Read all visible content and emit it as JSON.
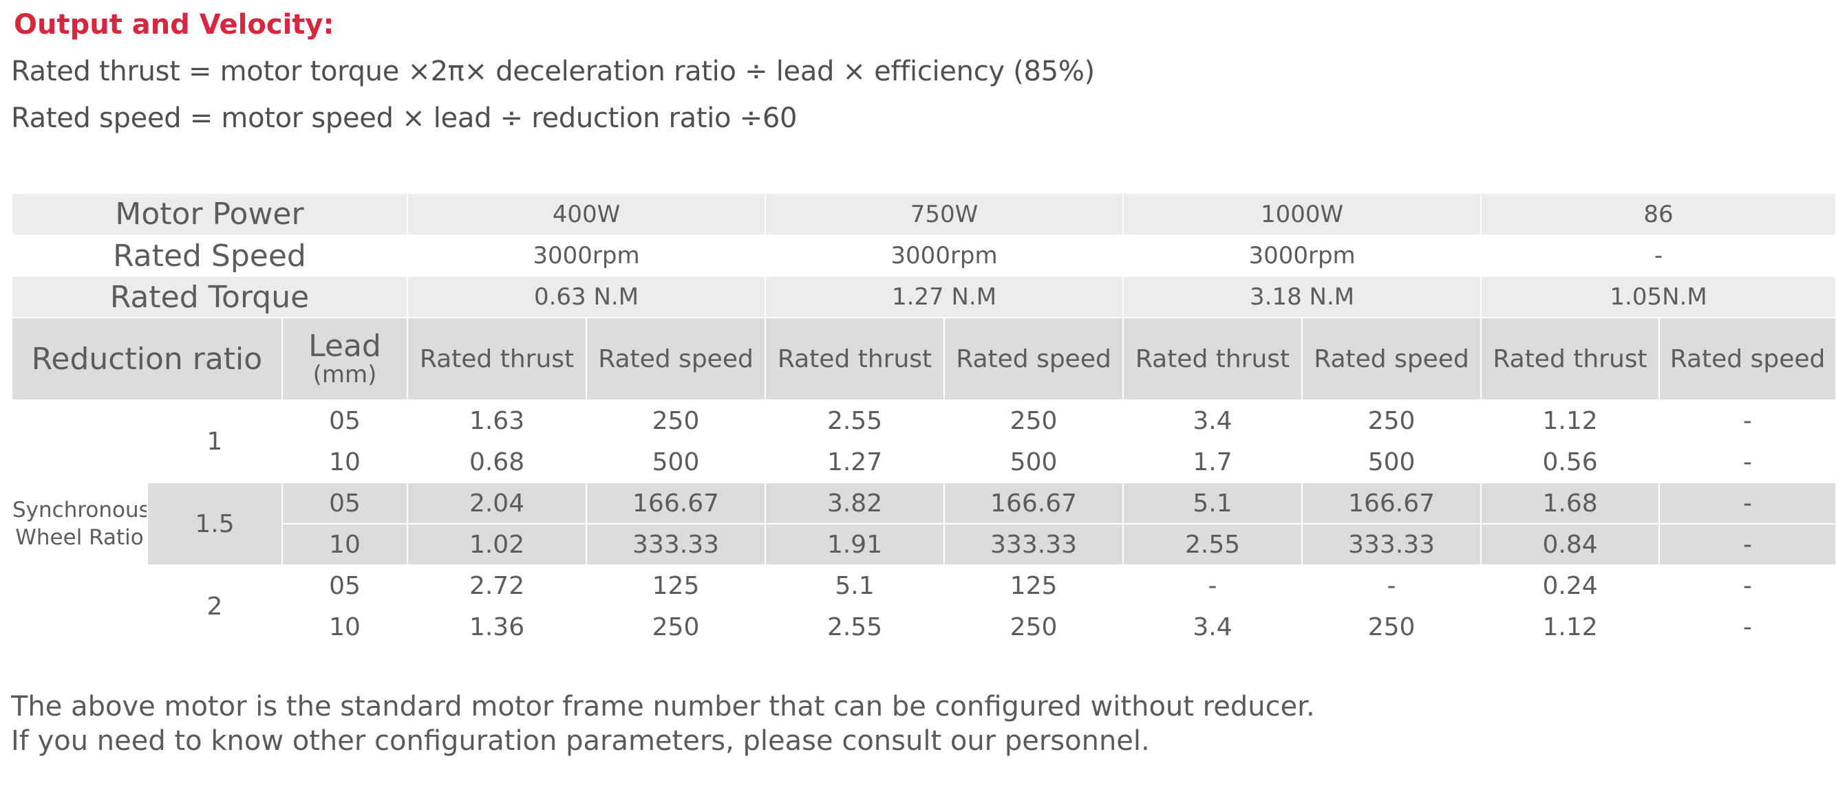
{
  "heading": "Output and Velocity:",
  "formulas": {
    "thrust": "Rated thrust = motor torque ×2π× deceleration ratio ÷ lead × efficiency (85%)",
    "speed": "Rated speed = motor speed × lead ÷ reduction ratio ÷60"
  },
  "table": {
    "row_labels": {
      "motor_power": "Motor Power",
      "rated_speed": "Rated Speed",
      "rated_torque": "Rated Torque"
    },
    "motors": [
      {
        "power": "400W",
        "speed": "3000rpm",
        "torque": "0.63 N.M"
      },
      {
        "power": "750W",
        "speed": "3000rpm",
        "torque": "1.27 N.M"
      },
      {
        "power": "1000W",
        "speed": "3000rpm",
        "torque": "3.18 N.M"
      },
      {
        "power": "86",
        "speed": "-",
        "torque": "1.05N.M"
      }
    ],
    "header": {
      "reduction_ratio": "Reduction ratio",
      "lead": "Lead",
      "lead_unit": "(mm)",
      "rated_thrust": "Rated thrust",
      "rated_speed": "Rated speed"
    },
    "group_label": "Synchronous Wheel Ratio",
    "groups": [
      {
        "ratio": "1",
        "rows": [
          {
            "lead": "05",
            "values": [
              "1.63",
              "250",
              "2.55",
              "250",
              "3.4",
              "250",
              "1.12",
              "-"
            ]
          },
          {
            "lead": "10",
            "values": [
              "0.68",
              "500",
              "1.27",
              "500",
              "1.7",
              "500",
              "0.56",
              "-"
            ]
          }
        ]
      },
      {
        "ratio": "1.5",
        "rows": [
          {
            "lead": "05",
            "values": [
              "2.04",
              "166.67",
              "3.82",
              "166.67",
              "5.1",
              "166.67",
              "1.68",
              "-"
            ]
          },
          {
            "lead": "10",
            "values": [
              "1.02",
              "333.33",
              "1.91",
              "333.33",
              "2.55",
              "333.33",
              "0.84",
              "-"
            ]
          }
        ]
      },
      {
        "ratio": "2",
        "rows": [
          {
            "lead": "05",
            "values": [
              "2.72",
              "125",
              "5.1",
              "125",
              "-",
              "-",
              "0.24",
              "-"
            ]
          },
          {
            "lead": "10",
            "values": [
              "1.36",
              "250",
              "2.55",
              "250",
              "3.4",
              "250",
              "1.12",
              "-"
            ]
          }
        ]
      }
    ]
  },
  "footnotes": [
    "The above motor is the standard motor frame number that can be configured without reducer.",
    "If you need to know other configuration parameters, please consult our personnel."
  ]
}
